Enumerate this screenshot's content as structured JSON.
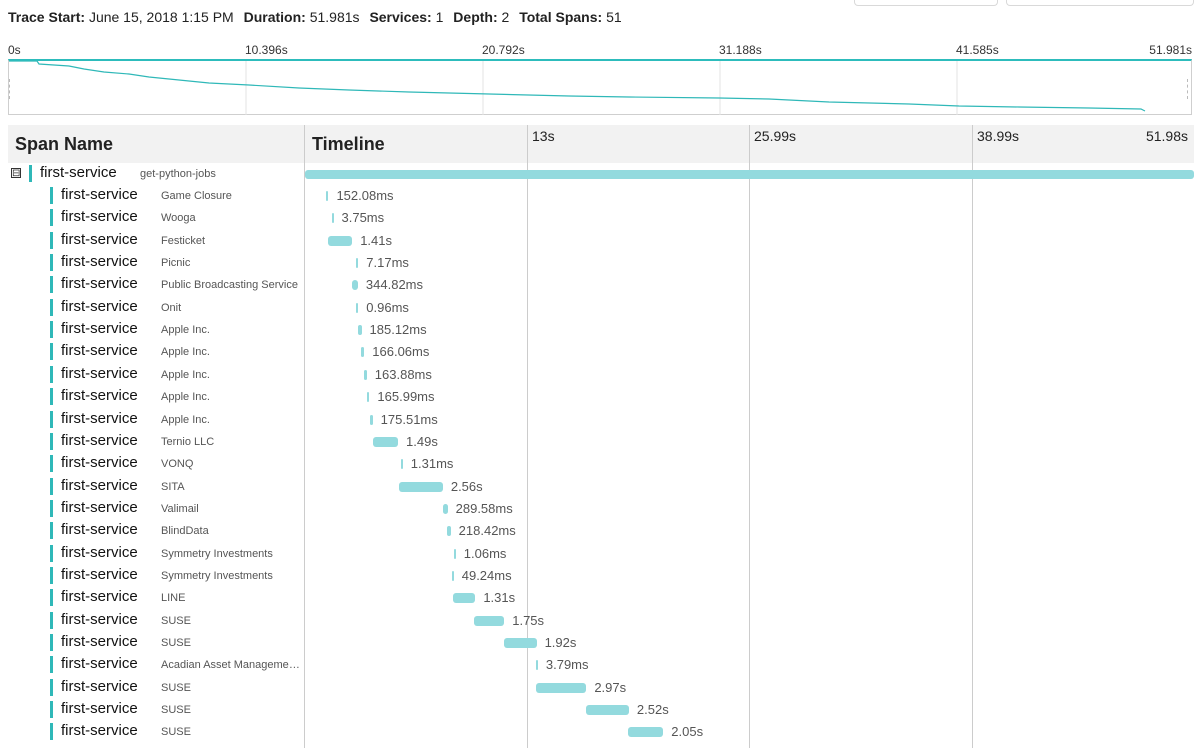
{
  "header": {
    "trace_start_label": "Trace Start:",
    "trace_start": "June 15, 2018 1:15 PM",
    "duration_label": "Duration:",
    "duration": "51.981s",
    "services_label": "Services:",
    "services": "1",
    "depth_label": "Depth:",
    "depth": "2",
    "total_spans_label": "Total Spans:",
    "total_spans": "51"
  },
  "minimap": {
    "ticks": [
      "0s",
      "10.396s",
      "20.792s",
      "31.188s",
      "41.585s",
      "51.981s"
    ]
  },
  "table": {
    "span_name_title": "Span Name",
    "timeline_title": "Timeline",
    "ticks": [
      "13s",
      "25.99s",
      "38.99s",
      "51.98s"
    ],
    "total_seconds": 51.98
  },
  "root": {
    "service": "first-service",
    "operation": "get-python-jobs",
    "collapse_glyph": "⊟"
  },
  "spans": [
    {
      "service": "first-service",
      "operation": "Game Closure",
      "duration": "152.08ms",
      "start_s": 1.22,
      "dur_s": 0.152
    },
    {
      "service": "first-service",
      "operation": "Wooga",
      "duration": "3.75ms",
      "start_s": 1.55,
      "dur_s": 0.004
    },
    {
      "service": "first-service",
      "operation": "Festicket",
      "duration": "1.41s",
      "start_s": 1.35,
      "dur_s": 1.41
    },
    {
      "service": "first-service",
      "operation": "Picnic",
      "duration": "7.17ms",
      "start_s": 3.0,
      "dur_s": 0.007
    },
    {
      "service": "first-service",
      "operation": "Public Broadcasting Service",
      "duration": "344.82ms",
      "start_s": 2.75,
      "dur_s": 0.345
    },
    {
      "service": "first-service",
      "operation": "Onit",
      "duration": "0.96ms",
      "start_s": 3.0,
      "dur_s": 0.001
    },
    {
      "service": "first-service",
      "operation": "Apple Inc.",
      "duration": "185.12ms",
      "start_s": 3.12,
      "dur_s": 0.185
    },
    {
      "service": "first-service",
      "operation": "Apple Inc.",
      "duration": "166.06ms",
      "start_s": 3.3,
      "dur_s": 0.166
    },
    {
      "service": "first-service",
      "operation": "Apple Inc.",
      "duration": "163.88ms",
      "start_s": 3.45,
      "dur_s": 0.164
    },
    {
      "service": "first-service",
      "operation": "Apple Inc.",
      "duration": "165.99ms",
      "start_s": 3.6,
      "dur_s": 0.166
    },
    {
      "service": "first-service",
      "operation": "Apple Inc.",
      "duration": "175.51ms",
      "start_s": 3.78,
      "dur_s": 0.176
    },
    {
      "service": "first-service",
      "operation": "Ternio LLC",
      "duration": "1.49s",
      "start_s": 3.95,
      "dur_s": 1.49
    },
    {
      "service": "first-service",
      "operation": "VONQ",
      "duration": "1.31ms",
      "start_s": 5.6,
      "dur_s": 0.001
    },
    {
      "service": "first-service",
      "operation": "SITA",
      "duration": "2.56s",
      "start_s": 5.5,
      "dur_s": 2.56
    },
    {
      "service": "first-service",
      "operation": "Valimail",
      "duration": "289.58ms",
      "start_s": 8.05,
      "dur_s": 0.29
    },
    {
      "service": "first-service",
      "operation": "BlindData",
      "duration": "218.42ms",
      "start_s": 8.3,
      "dur_s": 0.218
    },
    {
      "service": "first-service",
      "operation": "Symmetry Investments",
      "duration": "1.06ms",
      "start_s": 8.7,
      "dur_s": 0.001
    },
    {
      "service": "first-service",
      "operation": "Symmetry Investments",
      "duration": "49.24ms",
      "start_s": 8.58,
      "dur_s": 0.049
    },
    {
      "service": "first-service",
      "operation": "LINE",
      "duration": "1.31s",
      "start_s": 8.65,
      "dur_s": 1.31
    },
    {
      "service": "first-service",
      "operation": "SUSE",
      "duration": "1.75s",
      "start_s": 9.9,
      "dur_s": 1.75
    },
    {
      "service": "first-service",
      "operation": "SUSE",
      "duration": "1.92s",
      "start_s": 11.62,
      "dur_s": 1.92
    },
    {
      "service": "first-service",
      "operation": "Acadian Asset Management LLC",
      "duration": "3.79ms",
      "start_s": 13.5,
      "dur_s": 0.004
    },
    {
      "service": "first-service",
      "operation": "SUSE",
      "duration": "2.97s",
      "start_s": 13.48,
      "dur_s": 2.97
    },
    {
      "service": "first-service",
      "operation": "SUSE",
      "duration": "2.52s",
      "start_s": 16.42,
      "dur_s": 2.52
    },
    {
      "service": "first-service",
      "operation": "SUSE",
      "duration": "2.05s",
      "start_s": 18.9,
      "dur_s": 2.05
    }
  ],
  "colors": {
    "accent": "#2fb8b8",
    "span_bar": "#93dade",
    "header_bg": "#f2f2f2"
  }
}
